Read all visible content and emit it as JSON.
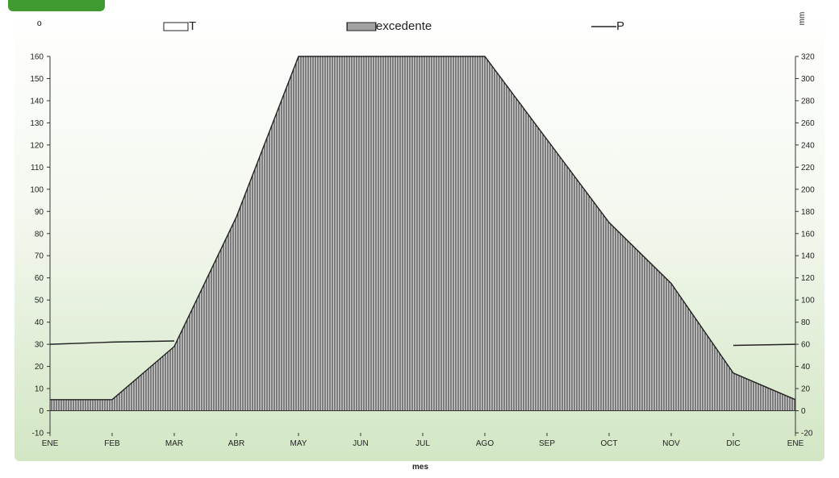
{
  "header_badge": {
    "color": "#3f9a2f"
  },
  "chart_data": {
    "type": "area",
    "title": "",
    "xlabel": "mes",
    "ylabel_left": "º",
    "ylabel_right": "mm",
    "categories": [
      "ENE",
      "FEB",
      "MAR",
      "ABR",
      "MAY",
      "JUN",
      "JUL",
      "AGO",
      "SEP",
      "OCT",
      "NOV",
      "DIC",
      "ENE"
    ],
    "ylim_left": [
      -10,
      160
    ],
    "yticks_left": [
      -10,
      0,
      10,
      20,
      30,
      40,
      50,
      60,
      70,
      80,
      90,
      100,
      110,
      120,
      130,
      140,
      150,
      160
    ],
    "ylim_right": [
      -20,
      320
    ],
    "yticks_right": [
      -20,
      0,
      20,
      40,
      60,
      80,
      100,
      120,
      140,
      160,
      180,
      200,
      220,
      240,
      260,
      280,
      300,
      320
    ],
    "legend_position": "top",
    "series": [
      {
        "name": "T",
        "axis": "left",
        "values": [
          30,
          31,
          31.5,
          null,
          null,
          null,
          null,
          null,
          null,
          null,
          null,
          29.5,
          30
        ]
      },
      {
        "name": "excedente",
        "axis": "right",
        "pattern": "vertical-hatch",
        "values": [
          10,
          10,
          58,
          175,
          320,
          320,
          320,
          320,
          245,
          170,
          115,
          34,
          10
        ]
      },
      {
        "name": "P",
        "axis": "right",
        "values": [
          10,
          10,
          58,
          175,
          320,
          320,
          320,
          320,
          245,
          170,
          115,
          34,
          10
        ]
      }
    ],
    "colors": {
      "background_top": "#ffffff",
      "background_bottom": "#d2e6c4",
      "hatch": "#444444",
      "line": "#222222"
    }
  }
}
